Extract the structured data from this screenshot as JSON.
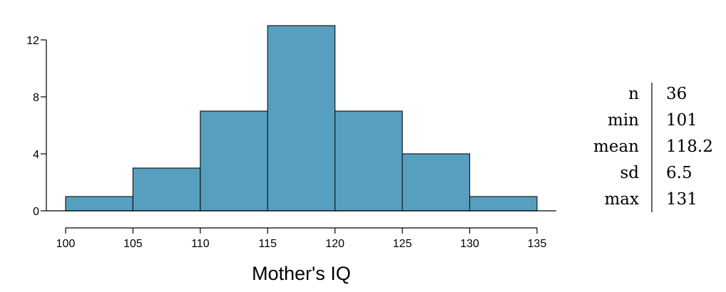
{
  "chart_data": {
    "type": "bar",
    "xlabel": "Mother's IQ",
    "ylabel": "",
    "xlim": [
      100,
      135
    ],
    "ylim": [
      0,
      12
    ],
    "x_ticks": [
      "100",
      "105",
      "110",
      "115",
      "120",
      "125",
      "130",
      "135"
    ],
    "y_ticks": [
      "0",
      "4",
      "8",
      "12"
    ],
    "bins": [
      {
        "start": 100,
        "end": 105,
        "count": 1
      },
      {
        "start": 105,
        "end": 110,
        "count": 3
      },
      {
        "start": 110,
        "end": 115,
        "count": 7
      },
      {
        "start": 115,
        "end": 120,
        "count": 13
      },
      {
        "start": 120,
        "end": 125,
        "count": 7
      },
      {
        "start": 125,
        "end": 130,
        "count": 4
      },
      {
        "start": 130,
        "end": 135,
        "count": 1
      }
    ],
    "bar_color": "#569fbf",
    "grid": false,
    "legend": "none"
  },
  "summary_stats": [
    {
      "label": "n",
      "value": "36"
    },
    {
      "label": "min",
      "value": "101"
    },
    {
      "label": "mean",
      "value": "118.2"
    },
    {
      "label": "sd",
      "value": "6.5"
    },
    {
      "label": "max",
      "value": "131"
    }
  ]
}
